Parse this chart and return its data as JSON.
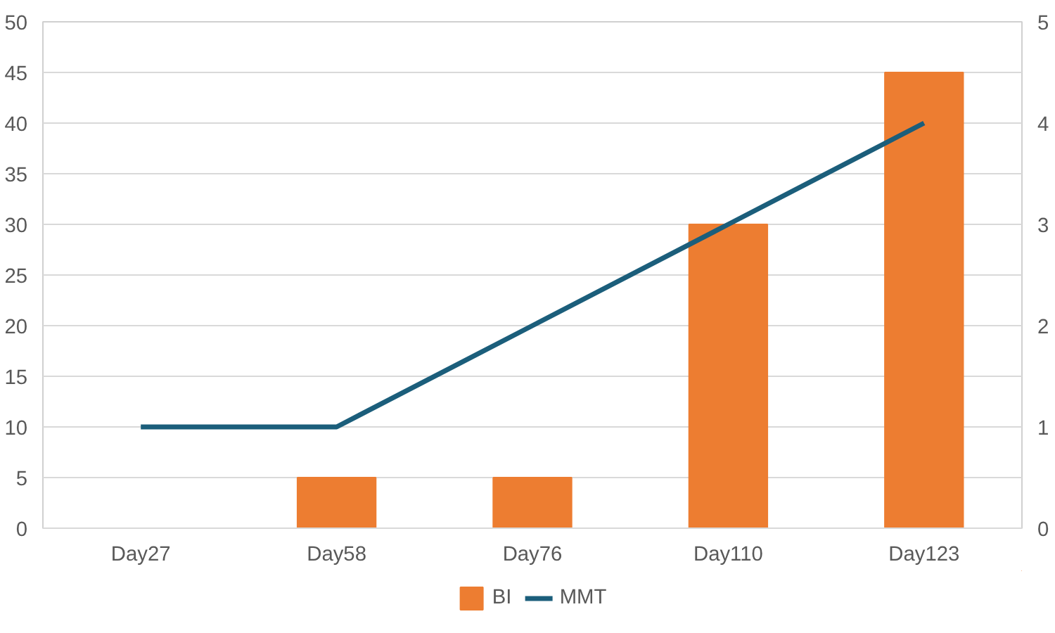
{
  "chart_data": {
    "type": "bar",
    "categories": [
      "Day27",
      "Day58",
      "Day76",
      "Day110",
      "Day123"
    ],
    "series": [
      {
        "name": "BI",
        "color": "#ed7d31",
        "values": [
          0,
          5,
          5,
          30,
          45
        ]
      },
      {
        "name": "MMT",
        "type": "line",
        "axis": "y2",
        "color": "#1b5e7b",
        "values": [
          1,
          1,
          2,
          3,
          4
        ]
      }
    ],
    "ylim": [
      0,
      50
    ],
    "yticks": [
      0,
      5,
      10,
      15,
      20,
      25,
      30,
      35,
      40,
      45,
      50
    ],
    "y2lim": [
      0,
      5
    ],
    "y2ticks": [
      0,
      1,
      2,
      3,
      4,
      5
    ],
    "grid": "y",
    "legend": "bottom"
  }
}
